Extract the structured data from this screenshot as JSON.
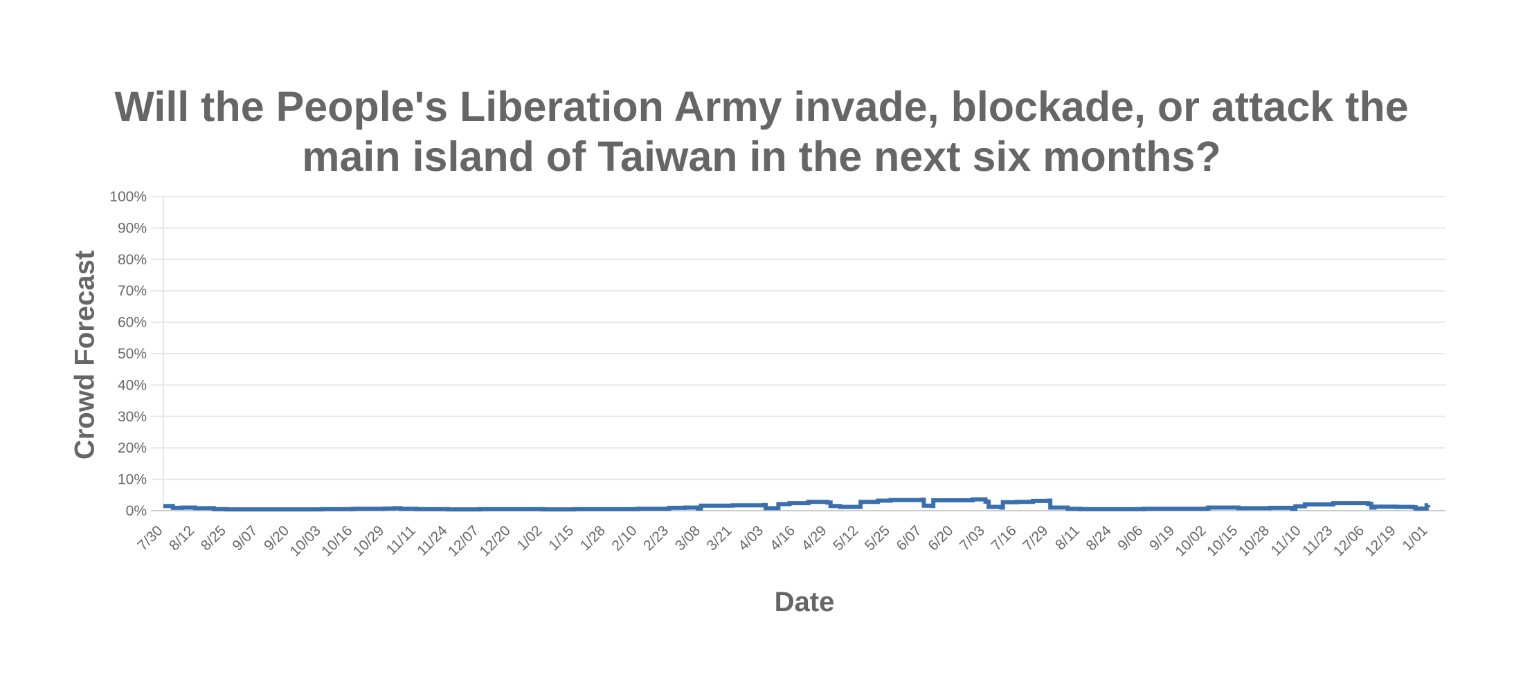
{
  "chart_data": {
    "type": "line",
    "title": "Will the People's Liberation Army invade, blockade, or attack the main island of Taiwan in the next six months?",
    "title_lines": [
      "Will the People's Liberation Army invade, blockade, or attack the",
      "main island of Taiwan in the next six months?"
    ],
    "xlabel": "Date",
    "ylabel": "Crowd Forecast",
    "ylim": [
      0,
      100
    ],
    "y_ticks": [
      "0%",
      "10%",
      "20%",
      "30%",
      "40%",
      "50%",
      "60%",
      "70%",
      "80%",
      "90%",
      "100%"
    ],
    "grid": true,
    "legend": null,
    "line_color": "#3a6fad",
    "categories": [
      "7/30",
      "8/12",
      "8/25",
      "9/07",
      "9/20",
      "10/03",
      "10/16",
      "10/29",
      "11/11",
      "11/24",
      "12/07",
      "12/20",
      "1/02",
      "1/15",
      "1/28",
      "2/10",
      "2/23",
      "3/08",
      "3/21",
      "4/03",
      "4/16",
      "4/29",
      "5/12",
      "5/25",
      "6/07",
      "6/20",
      "7/03",
      "7/16",
      "7/29",
      "8/11",
      "8/24",
      "9/06",
      "9/19",
      "10/02",
      "10/15",
      "10/28",
      "11/10",
      "11/23",
      "12/06",
      "12/19",
      "1/01"
    ],
    "series": [
      {
        "name": "Crowd Forecast",
        "values": [
          1.5,
          0.8,
          0.4,
          0.4,
          0.4,
          0.5,
          0.6,
          0.7,
          0.5,
          0.4,
          0.5,
          0.5,
          0.4,
          0.5,
          0.5,
          0.6,
          1.0,
          1.5,
          1.7,
          0.8,
          2.8,
          1.2,
          3.0,
          3.5,
          3.3,
          3.5,
          1.0,
          3.0,
          1.0,
          0.5,
          0.5,
          0.6,
          0.6,
          0.9,
          0.8,
          0.9,
          2.0,
          2.5,
          1.3,
          1.2,
          1.8
        ]
      }
    ],
    "step_points": [
      [
        0,
        1.5
      ],
      [
        0.3,
        0.9
      ],
      [
        0.6,
        1.0
      ],
      [
        1,
        0.8
      ],
      [
        1.6,
        0.5
      ],
      [
        2,
        0.4
      ],
      [
        3,
        0.4
      ],
      [
        4,
        0.4
      ],
      [
        5,
        0.5
      ],
      [
        6,
        0.6
      ],
      [
        7,
        0.7
      ],
      [
        7.3,
        0.8
      ],
      [
        7.5,
        0.6
      ],
      [
        8,
        0.5
      ],
      [
        9,
        0.4
      ],
      [
        10,
        0.5
      ],
      [
        11,
        0.5
      ],
      [
        12,
        0.4
      ],
      [
        13,
        0.5
      ],
      [
        14,
        0.5
      ],
      [
        15,
        0.6
      ],
      [
        16,
        0.9
      ],
      [
        16.5,
        1.0
      ],
      [
        16.9,
        0.7
      ],
      [
        17,
        1.6
      ],
      [
        17.5,
        1.6
      ],
      [
        18,
        1.7
      ],
      [
        19,
        1.8
      ],
      [
        19.05,
        0.8
      ],
      [
        19.4,
        0.8
      ],
      [
        19.45,
        2.1
      ],
      [
        19.8,
        2.4
      ],
      [
        20.4,
        2.8
      ],
      [
        21,
        2.6
      ],
      [
        21.1,
        1.5
      ],
      [
        21.4,
        1.2
      ],
      [
        22,
        1.2
      ],
      [
        22.05,
        2.8
      ],
      [
        22.6,
        3.2
      ],
      [
        23,
        3.4
      ],
      [
        24,
        3.5
      ],
      [
        24.05,
        1.6
      ],
      [
        24.3,
        1.5
      ],
      [
        24.35,
        3.3
      ],
      [
        25,
        3.3
      ],
      [
        25.6,
        3.6
      ],
      [
        26,
        2.9
      ],
      [
        26.1,
        1.2
      ],
      [
        26.5,
        1.0
      ],
      [
        26.55,
        2.7
      ],
      [
        27,
        2.8
      ],
      [
        27.5,
        3.1
      ],
      [
        28,
        3.2
      ],
      [
        28.05,
        1.0
      ],
      [
        28.6,
        0.6
      ],
      [
        29,
        0.5
      ],
      [
        30,
        0.5
      ],
      [
        31,
        0.6
      ],
      [
        32,
        0.6
      ],
      [
        33,
        0.7
      ],
      [
        33.05,
        1.0
      ],
      [
        34,
        0.8
      ],
      [
        35,
        0.9
      ],
      [
        35.6,
        0.9
      ],
      [
        35.7,
        0.6
      ],
      [
        35.8,
        1.4
      ],
      [
        36.1,
        2.0
      ],
      [
        37,
        2.4
      ],
      [
        37.7,
        2.4
      ],
      [
        38.1,
        2.2
      ],
      [
        38.2,
        1.0
      ],
      [
        38.3,
        1.3
      ],
      [
        39,
        1.2
      ],
      [
        39.5,
        1.1
      ],
      [
        39.6,
        0.7
      ],
      [
        39.9,
        0.7
      ],
      [
        39.95,
        1.7
      ],
      [
        40,
        1.8
      ]
    ]
  }
}
